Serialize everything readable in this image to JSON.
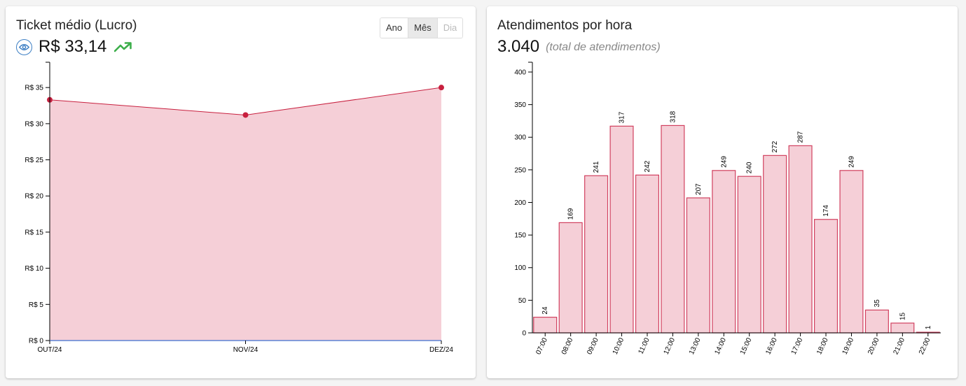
{
  "ticket": {
    "title": "Ticket médio (Lucro)",
    "value": "R$ 33,14",
    "icons": {
      "view": "eye-icon",
      "trend": "trending-up-icon"
    },
    "period_buttons": [
      {
        "label": "Ano",
        "state": "normal"
      },
      {
        "label": "Mês",
        "state": "active"
      },
      {
        "label": "Dia",
        "state": "disabled"
      }
    ]
  },
  "atendimentos": {
    "title": "Atendimentos por hora",
    "total": "3.040",
    "total_note": "(total de atendimentos)"
  },
  "chart_data": [
    {
      "type": "area",
      "categories": [
        "OUT/24",
        "NOV/24",
        "DEZ/24"
      ],
      "values": [
        33.3,
        31.2,
        35.0
      ],
      "ylim": [
        0,
        38.5
      ],
      "yticks": [
        0,
        5,
        10,
        15,
        20,
        25,
        30,
        35
      ],
      "ytick_labels": [
        "R$ 0",
        "R$ 5",
        "R$ 10",
        "R$ 15",
        "R$ 20",
        "R$ 25",
        "R$ 30",
        "R$ 35"
      ],
      "colors": {
        "line": "#c8203f",
        "fill": "#f5cfd7",
        "baseline": "#3d6fd0"
      }
    },
    {
      "type": "bar",
      "categories": [
        "07:00",
        "08:00",
        "09:00",
        "10:00",
        "11:00",
        "12:00",
        "13:00",
        "14:00",
        "15:00",
        "16:00",
        "17:00",
        "18:00",
        "19:00",
        "20:00",
        "21:00",
        "22:00"
      ],
      "values": [
        24,
        169,
        241,
        317,
        242,
        318,
        207,
        249,
        240,
        272,
        287,
        174,
        249,
        35,
        15,
        1
      ],
      "ylim": [
        0,
        415
      ],
      "yticks": [
        0,
        50,
        100,
        150,
        200,
        250,
        300,
        350,
        400
      ],
      "colors": {
        "bar_fill": "#f5cfd7",
        "bar_stroke": "#d1405f"
      }
    }
  ]
}
